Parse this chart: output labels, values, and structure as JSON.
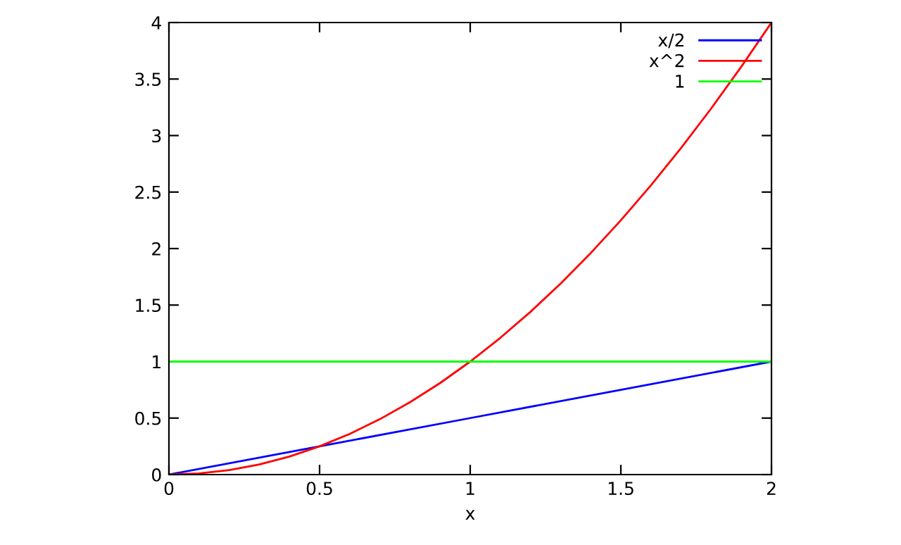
{
  "chart_data": {
    "type": "line",
    "xlabel": "x",
    "series": [
      {
        "name": "x/2",
        "color": "#0000ff",
        "x": [
          0,
          0.5,
          1,
          1.5,
          2
        ],
        "values": [
          0,
          0.25,
          0.5,
          0.75,
          1
        ]
      },
      {
        "name": "x^2",
        "color": "#ff0000",
        "x": [
          0,
          0.1,
          0.2,
          0.3,
          0.4,
          0.5,
          0.6,
          0.7,
          0.8,
          0.9,
          1,
          1.1,
          1.2,
          1.3,
          1.4,
          1.5,
          1.6,
          1.7,
          1.8,
          1.9,
          2
        ],
        "values": [
          0,
          0.01,
          0.04,
          0.09,
          0.16,
          0.25,
          0.36,
          0.49,
          0.64,
          0.81,
          1,
          1.21,
          1.44,
          1.69,
          1.96,
          2.25,
          2.56,
          2.89,
          3.24,
          3.61,
          4
        ]
      },
      {
        "name": "1",
        "color": "#00ff00",
        "x": [
          0,
          2
        ],
        "values": [
          1,
          1
        ]
      }
    ],
    "xlim": [
      0,
      2
    ],
    "ylim": [
      0,
      4
    ],
    "xticks": [
      0,
      0.5,
      1,
      1.5,
      2
    ],
    "yticks": [
      0,
      0.5,
      1,
      1.5,
      2,
      2.5,
      3,
      3.5,
      4
    ],
    "grid": false,
    "legend": "top right",
    "marker": "none",
    "line_style": "solid"
  }
}
